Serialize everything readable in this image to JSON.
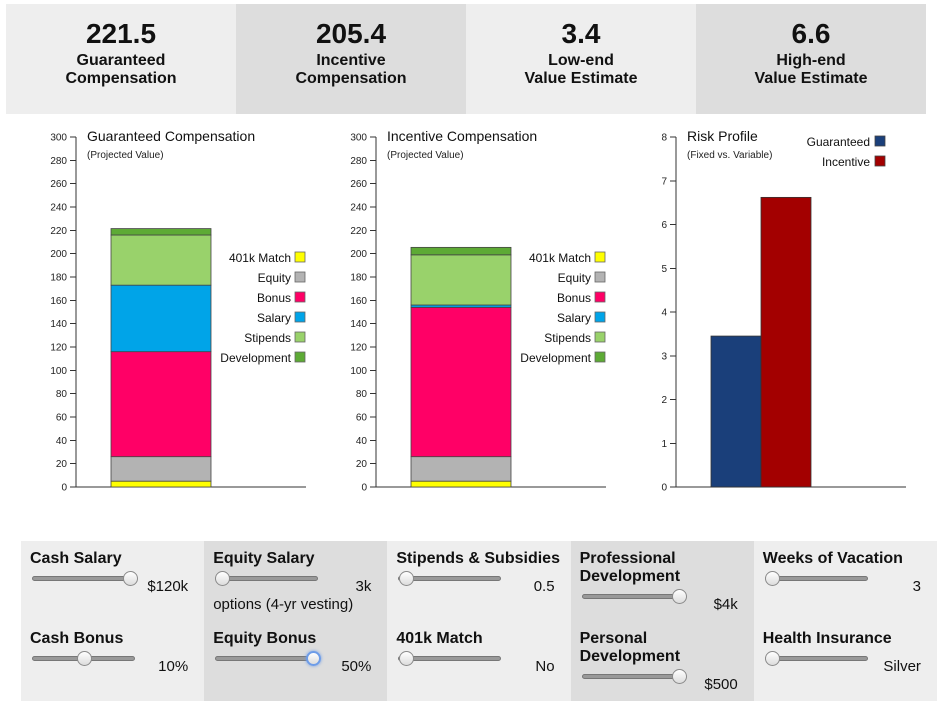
{
  "summary": [
    {
      "value": "221.5",
      "label": "Guaranteed\nCompensation"
    },
    {
      "value": "205.4",
      "label": "Incentive\nCompensation"
    },
    {
      "value": "3.4",
      "label": "Low-end\nValue Estimate"
    },
    {
      "value": "6.6",
      "label": "High-end\nValue Estimate"
    }
  ],
  "legend": [
    {
      "name": "401k Match",
      "color": "#ffff00"
    },
    {
      "name": "Equity",
      "color": "#b3b3b3"
    },
    {
      "name": "Bonus",
      "color": "#ff0066"
    },
    {
      "name": "Salary",
      "color": "#00a4e8"
    },
    {
      "name": "Stipends",
      "color": "#99d26b"
    },
    {
      "name": "Development",
      "color": "#5daa35"
    }
  ],
  "chart_data": [
    {
      "type": "bar",
      "stacked": true,
      "title": "Guaranteed Compensation",
      "subtitle": "(Projected Value)",
      "ylim": [
        0,
        300
      ],
      "yticks": [
        0,
        20,
        40,
        60,
        80,
        100,
        120,
        140,
        160,
        180,
        200,
        220,
        240,
        260,
        280,
        300
      ],
      "series": [
        {
          "name": "401k Match",
          "values": [
            5
          ]
        },
        {
          "name": "Equity",
          "values": [
            21
          ]
        },
        {
          "name": "Bonus",
          "values": [
            90
          ]
        },
        {
          "name": "Salary",
          "values": [
            57
          ]
        },
        {
          "name": "Stipends",
          "values": [
            43
          ]
        },
        {
          "name": "Development",
          "values": [
            5.5
          ]
        }
      ]
    },
    {
      "type": "bar",
      "stacked": true,
      "title": "Incentive Compensation",
      "subtitle": "(Projected Value)",
      "ylim": [
        0,
        300
      ],
      "yticks": [
        0,
        20,
        40,
        60,
        80,
        100,
        120,
        140,
        160,
        180,
        200,
        220,
        240,
        260,
        280,
        300
      ],
      "series": [
        {
          "name": "401k Match",
          "values": [
            5
          ]
        },
        {
          "name": "Equity",
          "values": [
            21
          ]
        },
        {
          "name": "Bonus",
          "values": [
            128
          ]
        },
        {
          "name": "Salary",
          "values": [
            2
          ]
        },
        {
          "name": "Stipends",
          "values": [
            43
          ]
        },
        {
          "name": "Development",
          "values": [
            6.4
          ]
        }
      ]
    },
    {
      "type": "bar",
      "title": "Risk Profile",
      "subtitle": "(Fixed vs. Variable)",
      "ylim": [
        0,
        8
      ],
      "yticks": [
        0,
        1,
        2,
        3,
        4,
        5,
        6,
        7,
        8
      ],
      "categories": [
        "Guaranteed",
        "Incentive"
      ],
      "values": [
        3.45,
        6.62
      ],
      "colors": [
        "#1a3f7a",
        "#a30000"
      ]
    }
  ],
  "controls": [
    {
      "label": "Cash Salary",
      "value": "$120k",
      "level": 0.95
    },
    {
      "label": "Equity Salary",
      "value": "3k",
      "value2": "options (4-yr vesting)",
      "level": 0.07
    },
    {
      "label": "Stipends & Subsidies",
      "value": "0.5",
      "level": 0.07
    },
    {
      "label": "Professional\nDevelopment",
      "value": "$4k",
      "level": 0.95
    },
    {
      "label": "Weeks of Vacation",
      "value": "3",
      "level": 0.07
    },
    {
      "label": "Cash Bonus",
      "value": "10%",
      "level": 0.5
    },
    {
      "label": "Equity Bonus",
      "value": "50%",
      "level": 0.95,
      "focused": true
    },
    {
      "label": "401k Match",
      "value": "No",
      "level": 0.07
    },
    {
      "label": "Personal\nDevelopment",
      "value": "$500",
      "level": 0.95
    },
    {
      "label": "Health Insurance",
      "value": "Silver",
      "level": 0.07
    }
  ]
}
